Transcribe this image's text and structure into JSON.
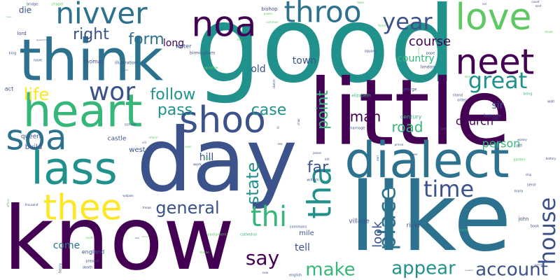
{
  "cloud": {
    "background": "#ffffff",
    "palette": {
      "dark_purple": "#440154",
      "indigo": "#3b528b",
      "teal": "#21918c",
      "green": "#5ec962",
      "yellow": "#fde725",
      "mid_teal": "#2c728e",
      "mid_green": "#35b779"
    },
    "words": [
      {
        "text": "good",
        "weight": 100,
        "color": "#21918c"
      },
      {
        "text": "know",
        "weight": 95,
        "color": "#440154"
      },
      {
        "text": "day",
        "weight": 95,
        "color": "#3b528b"
      },
      {
        "text": "like",
        "weight": 92,
        "color": "#2c728e"
      },
      {
        "text": "little",
        "weight": 88,
        "color": "#440154"
      },
      {
        "text": "think",
        "weight": 85,
        "color": "#2c728e"
      },
      {
        "text": "heart",
        "weight": 70,
        "color": "#35b779"
      },
      {
        "text": "lass",
        "weight": 62,
        "color": "#21918c"
      },
      {
        "text": "dialect",
        "weight": 62,
        "color": "#2c728e"
      },
      {
        "text": "nivver",
        "weight": 52,
        "color": "#2c728e"
      },
      {
        "text": "noa",
        "weight": 50,
        "color": "#440154"
      },
      {
        "text": "soa",
        "weight": 50,
        "color": "#2c728e"
      },
      {
        "text": "shoo",
        "weight": 48,
        "color": "#3b528b"
      },
      {
        "text": "neet",
        "weight": 48,
        "color": "#440154"
      },
      {
        "text": "love",
        "weight": 45,
        "color": "#5ec962"
      },
      {
        "text": "thee",
        "weight": 42,
        "color": "#fde725"
      },
      {
        "text": "throo",
        "weight": 40,
        "color": "#2c728e"
      },
      {
        "text": "tha",
        "weight": 45,
        "color": "#21918c"
      },
      {
        "text": "thi",
        "weight": 40,
        "color": "#35b779"
      },
      {
        "text": "wor",
        "weight": 33,
        "color": "#3b528b"
      },
      {
        "text": "great",
        "weight": 30,
        "color": "#21918c"
      },
      {
        "text": "year",
        "weight": 28,
        "color": "#3b528b"
      },
      {
        "text": "place",
        "weight": 32,
        "color": "#2c728e"
      },
      {
        "text": "time",
        "weight": 30,
        "color": "#3b528b"
      },
      {
        "text": "house",
        "weight": 30,
        "color": "#3b528b"
      },
      {
        "text": "account",
        "weight": 24,
        "color": "#3b528b"
      },
      {
        "text": "appear",
        "weight": 24,
        "color": "#21918c"
      },
      {
        "text": "make",
        "weight": 24,
        "color": "#35b779"
      },
      {
        "text": "say",
        "weight": 24,
        "color": "#440154"
      },
      {
        "text": "general",
        "weight": 22,
        "color": "#3b528b"
      },
      {
        "text": "follow",
        "weight": 22,
        "color": "#21918c"
      },
      {
        "text": "pass",
        "weight": 22,
        "color": "#21918c"
      },
      {
        "text": "case",
        "weight": 22,
        "color": "#21918c"
      },
      {
        "text": "life",
        "weight": 22,
        "color": "#fde725"
      },
      {
        "text": "right",
        "weight": 20,
        "color": "#3b528b"
      },
      {
        "text": "form",
        "weight": 20,
        "color": "#2c728e"
      },
      {
        "text": "course",
        "weight": 18,
        "color": "#440154"
      },
      {
        "text": "far",
        "weight": 20,
        "color": "#3b528b"
      },
      {
        "text": "state",
        "weight": 20,
        "color": "#21918c"
      },
      {
        "text": "point",
        "weight": 20,
        "color": "#35b779"
      },
      {
        "text": "man",
        "weight": 18,
        "color": "#440154"
      },
      {
        "text": "look",
        "weight": 16,
        "color": "#3b528b"
      },
      {
        "text": "road",
        "weight": 18,
        "color": "#35b779"
      },
      {
        "text": "church",
        "weight": 16,
        "color": "#440154"
      },
      {
        "text": "person",
        "weight": 14,
        "color": "#35b779"
      },
      {
        "text": "come",
        "weight": 14,
        "color": "#2c728e"
      },
      {
        "text": "tell",
        "weight": 14,
        "color": "#3b528b"
      },
      {
        "text": "long",
        "weight": 14,
        "color": "#440154"
      },
      {
        "text": "old",
        "weight": 14,
        "color": "#3b528b"
      },
      {
        "text": "country",
        "weight": 13,
        "color": "#35b779"
      },
      {
        "text": "town",
        "weight": 13,
        "color": "#3b528b"
      },
      {
        "text": "hill",
        "weight": 12,
        "color": "#3b528b"
      },
      {
        "text": "sir",
        "weight": 13,
        "color": "#3b528b"
      },
      {
        "text": "die",
        "weight": 11,
        "color": "#3b528b"
      },
      {
        "text": "build",
        "weight": 10,
        "color": "#3b528b"
      },
      {
        "text": "west",
        "weight": 10,
        "color": "#3b528b"
      },
      {
        "text": "castle",
        "weight": 9,
        "color": "#3b528b"
      },
      {
        "text": "queen",
        "weight": 9,
        "color": "#3b528b"
      },
      {
        "text": "village",
        "weight": 9,
        "color": "#3b528b"
      },
      {
        "text": "mile",
        "weight": 10,
        "color": "#3b528b"
      },
      {
        "text": "river",
        "weight": 9,
        "color": "#3b528b"
      },
      {
        "text": "century",
        "weight": 8,
        "color": "#35b779"
      },
      {
        "text": "england",
        "weight": 8,
        "color": "#3b528b"
      },
      {
        "text": "thomas",
        "weight": 8,
        "color": "#3b528b"
      },
      {
        "text": "water",
        "weight": 8,
        "color": "#3b528b"
      },
      {
        "text": "act",
        "weight": 8,
        "color": "#3b528b"
      },
      {
        "text": "lord",
        "weight": 7,
        "color": "#3b528b"
      },
      {
        "text": "john",
        "weight": 7,
        "color": "#3b528b"
      },
      {
        "text": "bishop",
        "weight": 7,
        "color": "#3b528b"
      },
      {
        "text": "birmingham",
        "weight": 6,
        "color": "#3b528b"
      },
      {
        "text": "illustration",
        "weight": 6,
        "color": "#3b528b"
      },
      {
        "text": "london",
        "weight": 6,
        "color": "#3b528b"
      },
      {
        "text": "footnote",
        "weight": 6,
        "color": "#3b528b"
      },
      {
        "text": "george",
        "weight": 6,
        "color": "#3b528b"
      },
      {
        "text": "elizabeth",
        "weight": 6,
        "color": "#35b779"
      },
      {
        "text": "marriage",
        "weight": 5,
        "color": "#3b528b"
      },
      {
        "text": "commons",
        "weight": 5,
        "color": "#3b528b"
      },
      {
        "text": "parliament",
        "weight": 5,
        "color": "#5ec962"
      },
      {
        "text": "cathedral",
        "weight": 5,
        "color": "#35b779"
      },
      {
        "text": "english",
        "weight": 5,
        "color": "#3b528b"
      },
      {
        "text": "present",
        "weight": 5,
        "color": "#3b528b"
      },
      {
        "text": "death",
        "weight": 5,
        "color": "#3b528b"
      },
      {
        "text": "henry",
        "weight": 5,
        "color": "#3b528b"
      },
      {
        "text": "william",
        "weight": 5,
        "color": "#3b528b"
      },
      {
        "text": "school",
        "weight": 5,
        "color": "#3b528b"
      },
      {
        "text": "window",
        "weight": 5,
        "color": "#5ec962"
      },
      {
        "text": "square",
        "weight": 5,
        "color": "#3b528b"
      },
      {
        "text": "bridge",
        "weight": 5,
        "color": "#3b528b"
      },
      {
        "text": "chapel",
        "weight": 5,
        "color": "#5ec962"
      },
      {
        "text": "nave",
        "weight": 5,
        "color": "#3b528b"
      },
      {
        "text": "king",
        "weight": 5,
        "color": "#3b528b"
      },
      {
        "text": "iron",
        "weight": 5,
        "color": "#3b528b"
      },
      {
        "text": "stand",
        "weight": 5,
        "color": "#3b528b"
      },
      {
        "text": "order",
        "weight": 5,
        "color": "#3b528b"
      },
      {
        "text": "bring",
        "weight": 5,
        "color": "#35b779"
      },
      {
        "text": "wall",
        "weight": 5,
        "color": "#3b528b"
      },
      {
        "text": "pitt",
        "weight": 5,
        "color": "#3b528b"
      },
      {
        "text": "garden",
        "weight": 5,
        "color": "#5ec962"
      },
      {
        "text": "mary",
        "weight": 5,
        "color": "#3b528b"
      },
      {
        "text": "book",
        "weight": 5,
        "color": "#3b528b"
      },
      {
        "text": "north",
        "weight": 5,
        "color": "#35b779"
      },
      {
        "text": "pope",
        "weight": 5,
        "color": "#3b528b"
      },
      {
        "text": "use",
        "weight": 5,
        "color": "#3b528b"
      },
      {
        "text": "work",
        "weight": 5,
        "color": "#3b528b"
      },
      {
        "text": "send",
        "weight": 5,
        "color": "#3b528b"
      },
      {
        "text": "east",
        "weight": 4,
        "color": "#3b528b"
      },
      {
        "text": "count",
        "weight": 4,
        "color": "#3b528b"
      },
      {
        "text": "vol",
        "weight": 4,
        "color": "#3b528b"
      },
      {
        "text": "duke",
        "weight": 4,
        "color": "#5ec962"
      },
      {
        "text": "power",
        "weight": 4,
        "color": "#5ec962"
      },
      {
        "text": "common",
        "weight": 4,
        "color": "#5ec962"
      },
      {
        "text": "forest",
        "weight": 4,
        "color": "#5ec962"
      },
      {
        "text": "soon",
        "weight": 4,
        "color": "#5ec962"
      },
      {
        "text": "james",
        "weight": 4,
        "color": "#3b528b"
      },
      {
        "text": "bill",
        "weight": 4,
        "color": "#3b528b"
      },
      {
        "text": "sea",
        "weight": 4,
        "color": "#3b528b"
      },
      {
        "text": "tower",
        "weight": 4,
        "color": "#3b528b"
      },
      {
        "text": "south",
        "weight": 4,
        "color": "#5ec962"
      },
      {
        "text": "thousand",
        "weight": 4,
        "color": "#3b528b"
      },
      {
        "text": "troops",
        "weight": 4,
        "color": "#3b528b"
      },
      {
        "text": "walpole",
        "weight": 4,
        "color": "#3b528b"
      },
      {
        "text": "chair",
        "weight": 4,
        "color": "#3b528b"
      },
      {
        "text": "sketch",
        "weight": 4,
        "color": "#3b528b"
      },
      {
        "text": "officer",
        "weight": 4,
        "color": "#5ec962"
      },
      {
        "text": "party",
        "weight": 4,
        "color": "#5ec962"
      },
      {
        "text": "street",
        "weight": 4,
        "color": "#5ec962"
      },
      {
        "text": "lane",
        "weight": 4,
        "color": "#5ec962"
      },
      {
        "text": "ship",
        "weight": 4,
        "color": "#3b528b"
      },
      {
        "text": "wolsey",
        "weight": 4,
        "color": "#3b528b"
      },
      {
        "text": "battery",
        "weight": 4,
        "color": "#3b528b"
      },
      {
        "text": "earl",
        "weight": 4,
        "color": "#3b528b"
      },
      {
        "text": "prince",
        "weight": 4,
        "color": "#3b528b"
      },
      {
        "text": "charles",
        "weight": 4,
        "color": "#5ec962"
      },
      {
        "text": "reform",
        "weight": 4,
        "color": "#5ec962"
      },
      {
        "text": "viii",
        "weight": 4,
        "color": "#3b528b"
      },
      {
        "text": "ill",
        "weight": 4,
        "color": "#3b528b"
      },
      {
        "text": "nay",
        "weight": 4,
        "color": "#5ec962"
      },
      {
        "text": "new",
        "weight": 4,
        "color": "#3b528b"
      },
      {
        "text": "clarendon",
        "weight": 3,
        "color": "#3b528b"
      },
      {
        "text": "government",
        "weight": 3,
        "color": "#3b528b"
      },
      {
        "text": "open",
        "weight": 3,
        "color": "#5ec962"
      },
      {
        "text": "holiday",
        "weight": 3,
        "color": "#5ec962"
      },
      {
        "text": "salmon",
        "weight": 3,
        "color": "#3b528b"
      },
      {
        "text": "norwich",
        "weight": 3,
        "color": "#3b528b"
      },
      {
        "text": "tenant",
        "weight": 3,
        "color": "#5ec962"
      },
      {
        "text": "lady",
        "weight": 3,
        "color": "#3b528b"
      }
    ]
  }
}
